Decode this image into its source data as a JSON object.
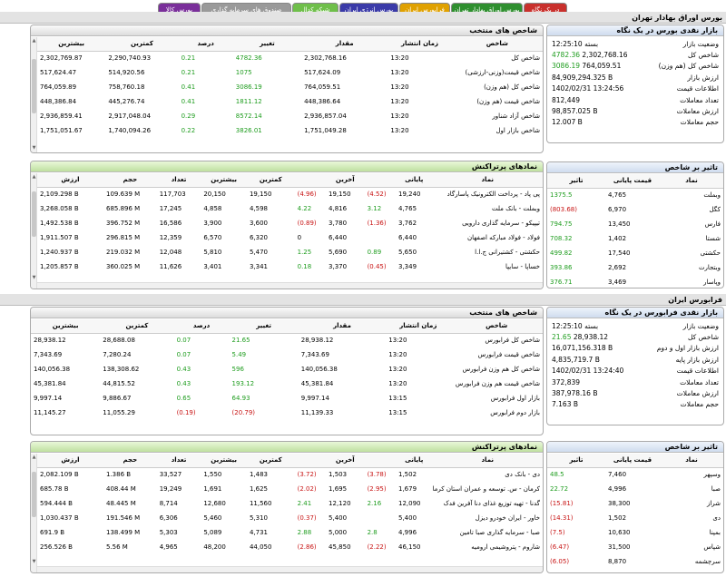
{
  "tabs": [
    {
      "label": "در یک نگاه",
      "bg": "#c9302c"
    },
    {
      "label": "بورس اوراق بهادار تهران",
      "bg": "#2f8f2f"
    },
    {
      "label": "فرابورس ایران",
      "bg": "#e0a100"
    },
    {
      "label": "بورس انرژی ایران",
      "bg": "#3a3aa8"
    },
    {
      "label": "شبکه کدال",
      "bg": "#6fbf4a"
    },
    {
      "label": "صندوق های سرمایه گذاری",
      "bg": "#9a9a9a"
    },
    {
      "label": "بورس کالا",
      "bg": "#7a2f9a"
    }
  ],
  "tse": {
    "title": "بورس اوراق بهادار تهران",
    "summary": {
      "title": "بازار نقدی بورس در یک نگاه",
      "rows": [
        {
          "label": "وضعیت بازار",
          "value": "بسته 12:25:10",
          "delta": "",
          "cls": ""
        },
        {
          "label": "شاخص کل",
          "value": "2,302,768.16",
          "delta": "4782.36",
          "cls": "pos"
        },
        {
          "label": "شاخص کل (هم وزن)",
          "value": "764,059.51",
          "delta": "3086.19",
          "cls": "pos"
        },
        {
          "label": "ارزش بازار",
          "value": "84,909,294.325 B",
          "delta": "",
          "cls": ""
        },
        {
          "label": "اطلاعات قیمت",
          "value": "1402/02/31 13:24:56",
          "delta": "",
          "cls": ""
        },
        {
          "label": "تعداد معاملات",
          "value": "812,449",
          "delta": "",
          "cls": ""
        },
        {
          "label": "ارزش معاملات",
          "value": "98,857.025 B",
          "delta": "",
          "cls": ""
        },
        {
          "label": "حجم معاملات",
          "value": "12.007 B",
          "delta": "",
          "cls": ""
        }
      ]
    },
    "indices": {
      "title": "شاخص های منتخب",
      "headers": [
        "شاخص",
        "زمان انتشار",
        "مقدار",
        "تغییر",
        "درصد",
        "کمترین",
        "بیشترین"
      ],
      "rows": [
        {
          "name": "شاخص کل",
          "time": "13:20",
          "value": "2,302,768.16",
          "change": "4782.36",
          "pct": "0.21",
          "low": "2,290,740.93",
          "high": "2,302,769.87",
          "cls": "pos"
        },
        {
          "name": "شاخص قیمت(وزنی-ارزشی)",
          "time": "13:20",
          "value": "517,624.09",
          "change": "1075",
          "pct": "0.21",
          "low": "514,920.56",
          "high": "517,624.47",
          "cls": "pos"
        },
        {
          "name": "شاخص کل (هم وزن)",
          "time": "13:20",
          "value": "764,059.51",
          "change": "3086.19",
          "pct": "0.41",
          "low": "758,760.18",
          "high": "764,059.89",
          "cls": "pos"
        },
        {
          "name": "شاخص قیمت (هم وزن)",
          "time": "13:20",
          "value": "448,386.64",
          "change": "1811.12",
          "pct": "0.41",
          "low": "445,276.74",
          "high": "448,386.84",
          "cls": "pos"
        },
        {
          "name": "شاخص آزاد شناور",
          "time": "13:20",
          "value": "2,936,857.04",
          "change": "8572.14",
          "pct": "0.29",
          "low": "2,917,048.04",
          "high": "2,936,859.41",
          "cls": "pos"
        },
        {
          "name": "شاخص بازار اول",
          "time": "13:20",
          "value": "1,751,049.28",
          "change": "3826.01",
          "pct": "0.22",
          "low": "1,740,094.26",
          "high": "1,751,051.67",
          "cls": "pos"
        }
      ]
    },
    "impact": {
      "title": "تاثیر بر شاخص",
      "headers": [
        "نماد",
        "قیمت پایانی",
        "تاثیر"
      ],
      "rows": [
        {
          "symbol": "وبملت",
          "price": "4,765",
          "impact": "1375.5",
          "cls": "pos"
        },
        {
          "symbol": "کگل",
          "price": "6,970",
          "impact": "(803.68)",
          "cls": "neg"
        },
        {
          "symbol": "فارس",
          "price": "13,450",
          "impact": "794.75",
          "cls": "pos"
        },
        {
          "symbol": "شستا",
          "price": "1,402",
          "impact": "708.32",
          "cls": "pos"
        },
        {
          "symbol": "حکشتی",
          "price": "17,540",
          "impact": "499.82",
          "cls": "pos"
        },
        {
          "symbol": "وبتجارت",
          "price": "2,692",
          "impact": "393.86",
          "cls": "pos"
        },
        {
          "symbol": "وپاسار",
          "price": "3,469",
          "impact": "376.71",
          "cls": "pos"
        }
      ]
    },
    "active": {
      "title": "نمادهای پرتراکنش",
      "headers": [
        "نماد",
        "پایانی",
        "",
        "آخرین",
        "",
        "کمترین",
        "بیشترین",
        "تعداد",
        "حجم",
        "ارزش"
      ],
      "rows": [
        {
          "name": "پی پاد - پرداخت الکترونیک پاسارگاد",
          "close": "19,240",
          "cchg": "(4.52)",
          "ccls": "neg",
          "last": "19,150",
          "lchg": "(4.96)",
          "lcls": "neg",
          "low": "19,150",
          "high": "20,150",
          "count": "117,703",
          "vol": "109.639 M",
          "val": "2,109.298 B"
        },
        {
          "name": "وبملت - بانک ملت",
          "close": "4,765",
          "cchg": "3.12",
          "ccls": "pos",
          "last": "4,816",
          "lchg": "4.22",
          "lcls": "pos",
          "low": "4,598",
          "high": "4,858",
          "count": "17,245",
          "vol": "685.896 M",
          "val": "3,268.058 B"
        },
        {
          "name": "تیپیکو - سرمایه گذاری دارویی",
          "close": "3,762",
          "cchg": "(1.36)",
          "ccls": "neg",
          "last": "3,780",
          "lchg": "(0.89)",
          "lcls": "neg",
          "low": "3,600",
          "high": "3,900",
          "count": "16,586",
          "vol": "396.752 M",
          "val": "1,492.538 B"
        },
        {
          "name": "فولاد - فولاد مبارکه اصفهان",
          "close": "6,440",
          "cchg": "",
          "ccls": "",
          "last": "6,440",
          "lchg": "0",
          "lcls": "",
          "low": "6,320",
          "high": "6,570",
          "count": "12,359",
          "vol": "296.815 M",
          "val": "1,911.507 B"
        },
        {
          "name": "حکشتی - کشتیرانی ج.ا.ا",
          "close": "5,650",
          "cchg": "0.89",
          "ccls": "pos",
          "last": "5,690",
          "lchg": "1.25",
          "lcls": "pos",
          "low": "5,470",
          "high": "5,810",
          "count": "12,048",
          "vol": "219.032 M",
          "val": "1,240.937 B"
        },
        {
          "name": "خساپا - سایپا",
          "close": "3,349",
          "cchg": "(0.45)",
          "ccls": "neg",
          "last": "3,370",
          "lchg": "0.18",
          "lcls": "pos",
          "low": "3,341",
          "high": "3,401",
          "count": "11,626",
          "vol": "360.025 M",
          "val": "1,205.857 B"
        }
      ]
    }
  },
  "ifb": {
    "title": "فرابورس ایران",
    "summary": {
      "title": "بازار نقدی فرابورس در یک نگاه",
      "rows": [
        {
          "label": "وضعیت بازار",
          "value": "بسته 12:25:10",
          "delta": "",
          "cls": ""
        },
        {
          "label": "شاخص کل",
          "value": "28,938.12",
          "delta": "21.65",
          "cls": "pos"
        },
        {
          "label": "ارزش بازار اول و دوم",
          "value": "16,071,156.318 B",
          "delta": "",
          "cls": ""
        },
        {
          "label": "ارزش بازار پایه",
          "value": "4,835,719.7 B",
          "delta": "",
          "cls": ""
        },
        {
          "label": "اطلاعات قیمت",
          "value": "1402/02/31 13:24:40",
          "delta": "",
          "cls": ""
        },
        {
          "label": "تعداد معاملات",
          "value": "372,839",
          "delta": "",
          "cls": ""
        },
        {
          "label": "ارزش معاملات",
          "value": "387,978.16 B",
          "delta": "",
          "cls": ""
        },
        {
          "label": "حجم معاملات",
          "value": "7.163 B",
          "delta": "",
          "cls": ""
        }
      ]
    },
    "indices": {
      "title": "شاخص های منتخب",
      "headers": [
        "شاخص",
        "زمان انتشار",
        "مقدار",
        "تغییر",
        "درصد",
        "کمترین",
        "بیشترین"
      ],
      "rows": [
        {
          "name": "شاخص کل فرابورس",
          "time": "13:20",
          "value": "28,938.12",
          "change": "21.65",
          "pct": "0.07",
          "low": "28,688.08",
          "high": "28,938.12",
          "cls": "pos"
        },
        {
          "name": "شاخص قیمت فرابورس",
          "time": "13:20",
          "value": "7,343.69",
          "change": "5.49",
          "pct": "0.07",
          "low": "7,280.24",
          "high": "7,343.69",
          "cls": "pos"
        },
        {
          "name": "شاخص کل هم وزن فرابورس",
          "time": "13:20",
          "value": "140,056.38",
          "change": "596",
          "pct": "0.43",
          "low": "138,308.62",
          "high": "140,056.38",
          "cls": "pos"
        },
        {
          "name": "شاخص قیمت هم وزن فرابورس",
          "time": "13:20",
          "value": "45,381.84",
          "change": "193.12",
          "pct": "0.43",
          "low": "44,815.52",
          "high": "45,381.84",
          "cls": "pos"
        },
        {
          "name": "بازار اول فرابورس",
          "time": "13:15",
          "value": "9,997.14",
          "change": "64.93",
          "pct": "0.65",
          "low": "9,886.67",
          "high": "9,997.14",
          "cls": "pos"
        },
        {
          "name": "بازار دوم فرابورس",
          "time": "13:15",
          "value": "11,139.33",
          "change": "(20.79)",
          "pct": "(0.19)",
          "low": "11,055.29",
          "high": "11,145.27",
          "cls": "neg"
        }
      ]
    },
    "impact": {
      "title": "تاثیر بر شاخص",
      "headers": [
        "نماد",
        "قیمت پایانی",
        "تاثیر"
      ],
      "rows": [
        {
          "symbol": "وسپهر",
          "price": "7,460",
          "impact": "48.5",
          "cls": "pos"
        },
        {
          "symbol": "صبا",
          "price": "4,996",
          "impact": "22.72",
          "cls": "pos"
        },
        {
          "symbol": "شراز",
          "price": "38,300",
          "impact": "(15.81)",
          "cls": "neg"
        },
        {
          "symbol": "دی",
          "price": "1,502",
          "impact": "(14.31)",
          "cls": "neg"
        },
        {
          "symbol": "بمپنا",
          "price": "10,630",
          "impact": "(7.5)",
          "cls": "neg"
        },
        {
          "symbol": "شپاس",
          "price": "31,500",
          "impact": "(6.47)",
          "cls": "neg"
        },
        {
          "symbol": "سرچشمه",
          "price": "8,870",
          "impact": "(6.05)",
          "cls": "neg"
        }
      ]
    },
    "active": {
      "title": "نمادهای پرتراکنش",
      "headers": [
        "نماد",
        "پایانی",
        "",
        "آخرین",
        "",
        "کمترین",
        "بیشترین",
        "تعداد",
        "حجم",
        "ارزش"
      ],
      "rows": [
        {
          "name": "دی - بانک دی",
          "close": "1,502",
          "cchg": "(3.78)",
          "ccls": "neg",
          "last": "1,503",
          "lchg": "(3.72)",
          "lcls": "neg",
          "low": "1,483",
          "high": "1,550",
          "count": "33,527",
          "vol": "1.386 B",
          "val": "2,082.109 B"
        },
        {
          "name": "کرمان - س. توسعه و عمران استان کرمان",
          "close": "1,679",
          "cchg": "(2.95)",
          "ccls": "neg",
          "last": "1,695",
          "lchg": "(2.02)",
          "lcls": "neg",
          "low": "1,625",
          "high": "1,691",
          "count": "19,249",
          "vol": "408.44 M",
          "val": "685.78 B"
        },
        {
          "name": "گدنا - تهیه توزیع غذای دنا آفرین فدک",
          "close": "12,090",
          "cchg": "2.16",
          "ccls": "pos",
          "last": "12,120",
          "lchg": "2.41",
          "lcls": "pos",
          "low": "11,560",
          "high": "12,680",
          "count": "8,714",
          "vol": "48.445 M",
          "val": "594.444 B"
        },
        {
          "name": "خاور - ایران خودرو دیزل",
          "close": "5,400",
          "cchg": "",
          "ccls": "",
          "last": "5,400",
          "lchg": "(0.37)",
          "lcls": "neg",
          "low": "5,310",
          "high": "5,460",
          "count": "6,306",
          "vol": "191.546 M",
          "val": "1,030.437 B"
        },
        {
          "name": "صبا - سرمایه گذاری صبا تامین",
          "close": "4,996",
          "cchg": "2.8",
          "ccls": "pos",
          "last": "5,000",
          "lchg": "2.88",
          "lcls": "pos",
          "low": "4,731",
          "high": "5,089",
          "count": "5,303",
          "vol": "138.499 M",
          "val": "691.9 B"
        },
        {
          "name": "شاروم - پتروشیمی ارومیه",
          "close": "46,150",
          "cchg": "(2.22)",
          "ccls": "neg",
          "last": "45,850",
          "lchg": "(2.86)",
          "lcls": "neg",
          "low": "44,050",
          "high": "48,200",
          "count": "4,965",
          "vol": "5.56 M",
          "val": "256.526 B"
        }
      ]
    }
  }
}
